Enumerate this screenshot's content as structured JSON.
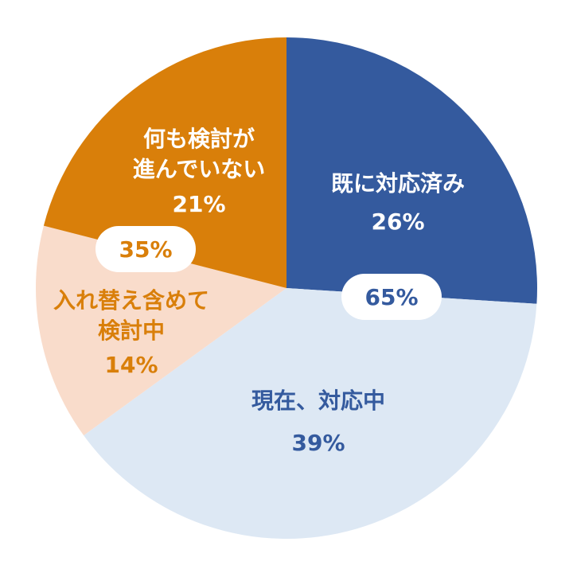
{
  "chart_data": {
    "type": "pie",
    "categories": [
      "既に対応済み",
      "現在、対応中",
      "入れ替え含めて\n検討中",
      "何も検討が\n進んでいない"
    ],
    "values": [
      26,
      39,
      14,
      21
    ],
    "value_labels": [
      "26%",
      "39%",
      "14%",
      "21%"
    ],
    "colors": [
      "#345a9e",
      "#dde8f4",
      "#f9dccb",
      "#d97f0a"
    ],
    "label_colors": [
      "#ffffff",
      "#345a9e",
      "#d97f0a",
      "#ffffff"
    ],
    "group_totals": {
      "values": [
        65,
        35
      ],
      "value_labels": [
        "65%",
        "35%"
      ],
      "colors": [
        "#345a9e",
        "#d97f0a"
      ]
    }
  }
}
